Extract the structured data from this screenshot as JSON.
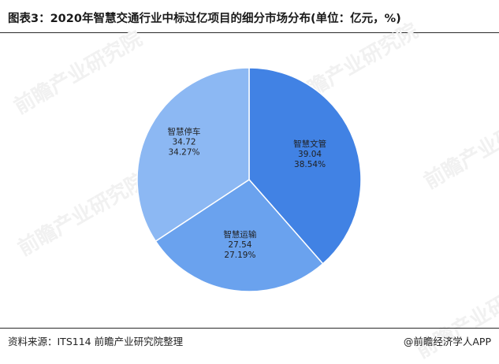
{
  "header": {
    "title": "图表3：2020年智慧交通行业中标过亿项目的细分市场分布(单位：亿元，%)"
  },
  "footer": {
    "source": "资料来源：ITS114 前瞻产业研究院整理",
    "brand": "@前瞻经济学人APP"
  },
  "watermark": {
    "text": "前瞻产业研究院"
  },
  "colors": {
    "slice_1": "#4182e4",
    "slice_2": "#6aa2ee",
    "slice_3": "#8cb8f3",
    "border": "#ffffff"
  },
  "chart_data": {
    "type": "pie",
    "title": "图表3：2020年智慧交通行业中标过亿项目的细分市场分布(单位：亿元，%)",
    "slices": [
      {
        "label": "智慧文管",
        "value": 39.04,
        "percent": "38.54%"
      },
      {
        "label": "智慧运输",
        "value": 27.54,
        "percent": "27.19%"
      },
      {
        "label": "智慧停车",
        "value": 34.72,
        "percent": "34.27%"
      }
    ],
    "start_angle_deg": 0,
    "direction": "clockwise",
    "legend": "none"
  }
}
